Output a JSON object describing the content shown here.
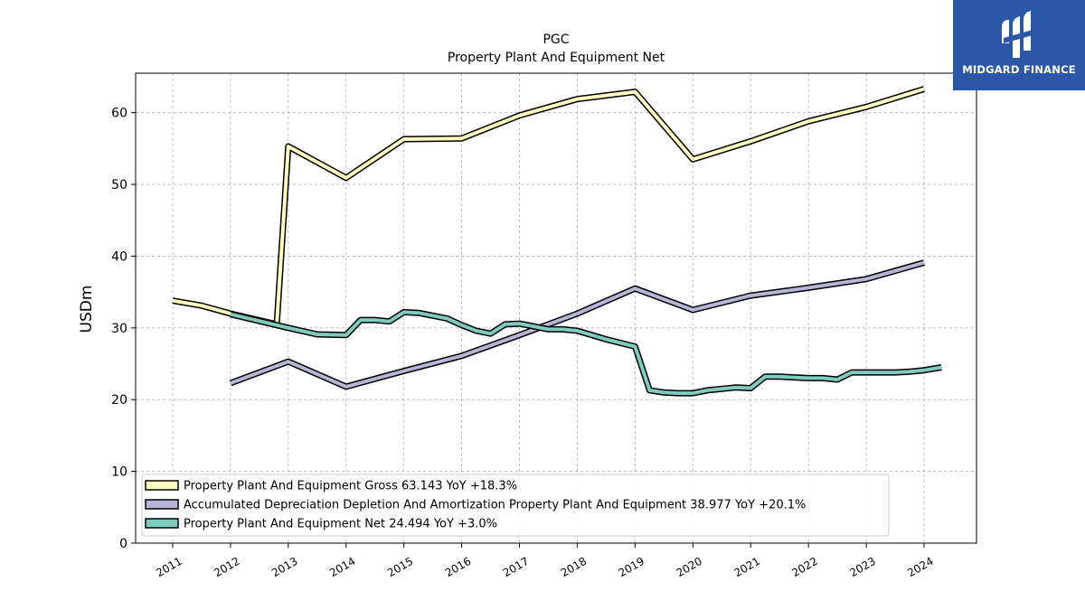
{
  "brand": {
    "name": "MIDGARD FINANCE",
    "icon": "midgard-logo-icon",
    "color": "#2a57a8"
  },
  "chart_data": {
    "type": "line",
    "title": "PGC",
    "subtitle": "Property Plant And Equipment Net",
    "xlabel": "",
    "ylabel": "USDm",
    "ylim": [
      0,
      65.5
    ],
    "yticks": [
      0,
      10,
      20,
      30,
      40,
      50,
      60
    ],
    "xticks": [
      "2011",
      "2012",
      "2013",
      "2014",
      "2015",
      "2016",
      "2017",
      "2018",
      "2019",
      "2020",
      "2021",
      "2022",
      "2023",
      "2024"
    ],
    "grid": true,
    "legend_position": "lower-left",
    "series": [
      {
        "name": "Property Plant And Equipment Gross",
        "legend_label": "Property Plant And Equipment Gross  63.143 YoY +18.3%",
        "color": "#ffffc0",
        "points": [
          [
            2011.0,
            33.8
          ],
          [
            2011.5,
            33.1
          ],
          [
            2012.0,
            32.0
          ],
          [
            2012.8,
            30.5
          ],
          [
            2013.0,
            55.3
          ],
          [
            2014.0,
            50.9
          ],
          [
            2015.0,
            56.3
          ],
          [
            2016.0,
            56.4
          ],
          [
            2017.0,
            59.6
          ],
          [
            2018.0,
            61.9
          ],
          [
            2019.0,
            62.9
          ],
          [
            2020.0,
            53.5
          ],
          [
            2021.0,
            56.0
          ],
          [
            2022.0,
            58.8
          ],
          [
            2023.0,
            60.8
          ],
          [
            2024.0,
            63.3
          ]
        ]
      },
      {
        "name": "Accumulated Depreciation Depletion And Amortization Property Plant And Equipment",
        "legend_label": "Accumulated Depreciation Depletion And Amortization Property Plant And Equipment  38.977 YoY +20.1%",
        "color": "#b8b4d6",
        "points": [
          [
            2012.0,
            22.3
          ],
          [
            2013.0,
            25.3
          ],
          [
            2014.0,
            21.8
          ],
          [
            2015.0,
            24.0
          ],
          [
            2016.0,
            26.1
          ],
          [
            2017.0,
            29.0
          ],
          [
            2018.0,
            32.0
          ],
          [
            2019.0,
            35.5
          ],
          [
            2020.0,
            32.5
          ],
          [
            2021.0,
            34.5
          ],
          [
            2022.0,
            35.6
          ],
          [
            2023.0,
            36.8
          ],
          [
            2024.0,
            39.1
          ]
        ]
      },
      {
        "name": "Property Plant And Equipment Net",
        "legend_label": "Property Plant And Equipment Net  24.494 YoY +3.0%",
        "color": "#80cbbf",
        "points": [
          [
            2012.0,
            31.9
          ],
          [
            2013.0,
            30.0
          ],
          [
            2013.5,
            29.1
          ],
          [
            2014.0,
            29.0
          ],
          [
            2014.25,
            31.1
          ],
          [
            2014.5,
            31.1
          ],
          [
            2014.75,
            30.9
          ],
          [
            2015.0,
            32.2
          ],
          [
            2015.25,
            32.1
          ],
          [
            2015.5,
            31.7
          ],
          [
            2015.75,
            31.3
          ],
          [
            2016.0,
            30.4
          ],
          [
            2016.25,
            29.6
          ],
          [
            2016.5,
            29.2
          ],
          [
            2016.75,
            30.5
          ],
          [
            2017.0,
            30.6
          ],
          [
            2017.25,
            30.2
          ],
          [
            2017.5,
            29.8
          ],
          [
            2017.75,
            29.8
          ],
          [
            2018.0,
            29.6
          ],
          [
            2018.5,
            28.4
          ],
          [
            2019.0,
            27.4
          ],
          [
            2019.25,
            21.3
          ],
          [
            2019.5,
            21.0
          ],
          [
            2019.75,
            20.9
          ],
          [
            2020.0,
            20.9
          ],
          [
            2020.25,
            21.3
          ],
          [
            2020.5,
            21.5
          ],
          [
            2020.75,
            21.7
          ],
          [
            2021.0,
            21.6
          ],
          [
            2021.25,
            23.2
          ],
          [
            2021.5,
            23.2
          ],
          [
            2021.75,
            23.1
          ],
          [
            2022.0,
            23.0
          ],
          [
            2022.25,
            23.0
          ],
          [
            2022.5,
            22.8
          ],
          [
            2022.75,
            23.8
          ],
          [
            2023.0,
            23.8
          ],
          [
            2023.25,
            23.8
          ],
          [
            2023.5,
            23.8
          ],
          [
            2023.75,
            23.9
          ],
          [
            2024.0,
            24.1
          ],
          [
            2024.3,
            24.5
          ]
        ]
      }
    ]
  }
}
